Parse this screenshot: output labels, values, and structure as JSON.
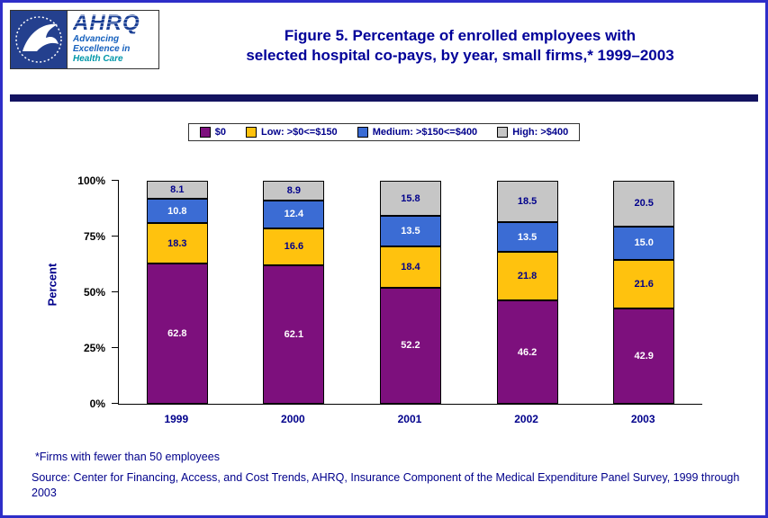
{
  "page": {
    "title_line1": "Figure 5. Percentage of enrolled employees with",
    "title_line2": "selected hospital co-pays, by year, small firms,* 1999–2003"
  },
  "logos": {
    "ahrq_acronym": "AHRQ",
    "ahrq_tagline_line1": "Advancing",
    "ahrq_tagline_line2": "Excellence in",
    "ahrq_tagline_line3": "Health Care"
  },
  "footnotes": {
    "asterisk": "*Firms with fewer than 50 employees",
    "source": "Source: Center for Financing, Access, and Cost Trends, AHRQ, Insurance Component of the Medical Expenditure Panel Survey, 1999 through 2003"
  },
  "chart_data": {
    "type": "bar",
    "stacked": true,
    "title": "Figure 5. Percentage of enrolled employees with selected hospital co-pays, by year, small firms,* 1999–2003",
    "categories": [
      "1999",
      "2000",
      "2001",
      "2002",
      "2003"
    ],
    "series": [
      {
        "name": "$0",
        "color": "#7D107D",
        "label_color": "#FFFFFF",
        "values": [
          62.8,
          62.1,
          52.2,
          46.2,
          42.9
        ]
      },
      {
        "name": "Low: >$0<=$150",
        "color": "#FFC20E",
        "label_color": "#00008B",
        "values": [
          18.3,
          16.6,
          18.4,
          21.8,
          21.6
        ]
      },
      {
        "name": "Medium: >$150<=$400",
        "color": "#3B6CD4",
        "label_color": "#FFFFFF",
        "values": [
          10.8,
          12.4,
          13.5,
          13.5,
          15.0
        ]
      },
      {
        "name": "High: >$400",
        "color": "#C6C6C6",
        "label_color": "#00008B",
        "values": [
          8.1,
          8.9,
          15.8,
          18.5,
          20.5
        ]
      }
    ],
    "xlabel": "",
    "ylabel": "Percent",
    "ylim": [
      0,
      100
    ],
    "yticks": [
      "0%",
      "25%",
      "50%",
      "75%",
      "100%"
    ],
    "legend_position": "top",
    "grid": false
  }
}
